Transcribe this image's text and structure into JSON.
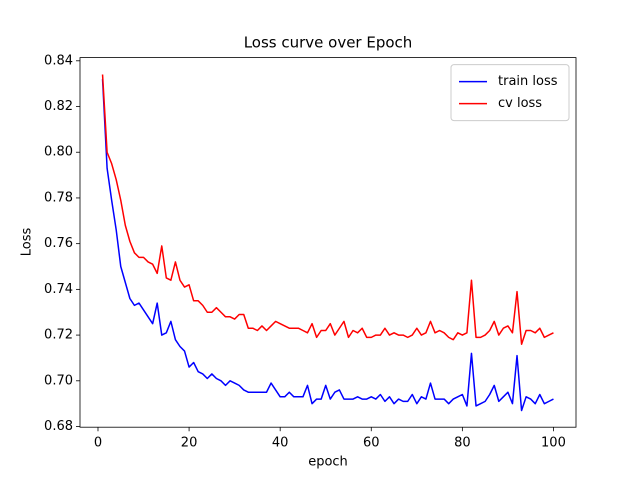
{
  "chart_data": {
    "type": "line",
    "title": "Loss curve over Epoch",
    "x_label": "epoch",
    "y_label": "Loss",
    "x": [
      1,
      2,
      3,
      4,
      5,
      6,
      7,
      8,
      9,
      10,
      11,
      12,
      13,
      14,
      15,
      16,
      17,
      18,
      19,
      20,
      21,
      22,
      23,
      24,
      25,
      26,
      27,
      28,
      29,
      30,
      31,
      32,
      33,
      34,
      35,
      36,
      37,
      38,
      39,
      40,
      41,
      42,
      43,
      44,
      45,
      46,
      47,
      48,
      49,
      50,
      51,
      52,
      53,
      54,
      55,
      56,
      57,
      58,
      59,
      60,
      61,
      62,
      63,
      64,
      65,
      66,
      67,
      68,
      69,
      70,
      71,
      72,
      73,
      74,
      75,
      76,
      77,
      78,
      79,
      80,
      81,
      82,
      83,
      84,
      85,
      86,
      87,
      88,
      89,
      90,
      91,
      92,
      93,
      94,
      95,
      96,
      97,
      98,
      99,
      100
    ],
    "series": [
      {
        "name": "train loss",
        "color": "#0000ff",
        "values": [
          0.832,
          0.793,
          0.779,
          0.766,
          0.75,
          0.743,
          0.736,
          0.733,
          0.734,
          0.731,
          0.728,
          0.725,
          0.734,
          0.72,
          0.721,
          0.726,
          0.718,
          0.715,
          0.713,
          0.706,
          0.708,
          0.704,
          0.703,
          0.701,
          0.703,
          0.701,
          0.7,
          0.698,
          0.7,
          0.699,
          0.698,
          0.696,
          0.695,
          0.695,
          0.695,
          0.695,
          0.695,
          0.699,
          0.696,
          0.693,
          0.693,
          0.695,
          0.693,
          0.693,
          0.693,
          0.698,
          0.69,
          0.692,
          0.692,
          0.698,
          0.692,
          0.695,
          0.696,
          0.692,
          0.692,
          0.692,
          0.693,
          0.692,
          0.692,
          0.693,
          0.692,
          0.694,
          0.691,
          0.693,
          0.69,
          0.692,
          0.691,
          0.691,
          0.694,
          0.69,
          0.693,
          0.692,
          0.699,
          0.692,
          0.692,
          0.692,
          0.69,
          0.692,
          0.693,
          0.694,
          0.689,
          0.712,
          0.689,
          0.69,
          0.691,
          0.694,
          0.698,
          0.691,
          0.693,
          0.695,
          0.69,
          0.711,
          0.687,
          0.693,
          0.692,
          0.69,
          0.694,
          0.69,
          0.691,
          0.692
        ]
      },
      {
        "name": "cv loss",
        "color": "#ff0000",
        "values": [
          0.834,
          0.8,
          0.795,
          0.788,
          0.779,
          0.768,
          0.761,
          0.756,
          0.754,
          0.754,
          0.752,
          0.751,
          0.747,
          0.759,
          0.745,
          0.744,
          0.752,
          0.744,
          0.741,
          0.742,
          0.735,
          0.735,
          0.733,
          0.73,
          0.73,
          0.732,
          0.73,
          0.728,
          0.728,
          0.727,
          0.729,
          0.729,
          0.723,
          0.723,
          0.722,
          0.724,
          0.722,
          0.724,
          0.726,
          0.725,
          0.724,
          0.723,
          0.723,
          0.723,
          0.722,
          0.721,
          0.725,
          0.719,
          0.722,
          0.722,
          0.725,
          0.72,
          0.723,
          0.726,
          0.719,
          0.722,
          0.721,
          0.723,
          0.719,
          0.719,
          0.72,
          0.72,
          0.723,
          0.72,
          0.721,
          0.72,
          0.72,
          0.719,
          0.72,
          0.723,
          0.72,
          0.721,
          0.726,
          0.721,
          0.722,
          0.721,
          0.719,
          0.718,
          0.721,
          0.72,
          0.721,
          0.744,
          0.719,
          0.719,
          0.72,
          0.722,
          0.726,
          0.72,
          0.723,
          0.724,
          0.721,
          0.739,
          0.716,
          0.722,
          0.722,
          0.721,
          0.723,
          0.719,
          0.72,
          0.721
        ]
      }
    ],
    "xlim": [
      -3.95,
      104.95
    ],
    "xticks": [
      0,
      20,
      40,
      60,
      80,
      100
    ],
    "ylim": [
      0.6797,
      0.8414
    ],
    "yticks": [
      0.68,
      {
        "value": 0.7,
        "label": "0.70"
      },
      0.72,
      0.74,
      0.76,
      0.78,
      {
        "value": 0.8,
        "label": "0.80"
      },
      0.82,
      0.84
    ],
    "grid": false,
    "legend": "upper right"
  }
}
